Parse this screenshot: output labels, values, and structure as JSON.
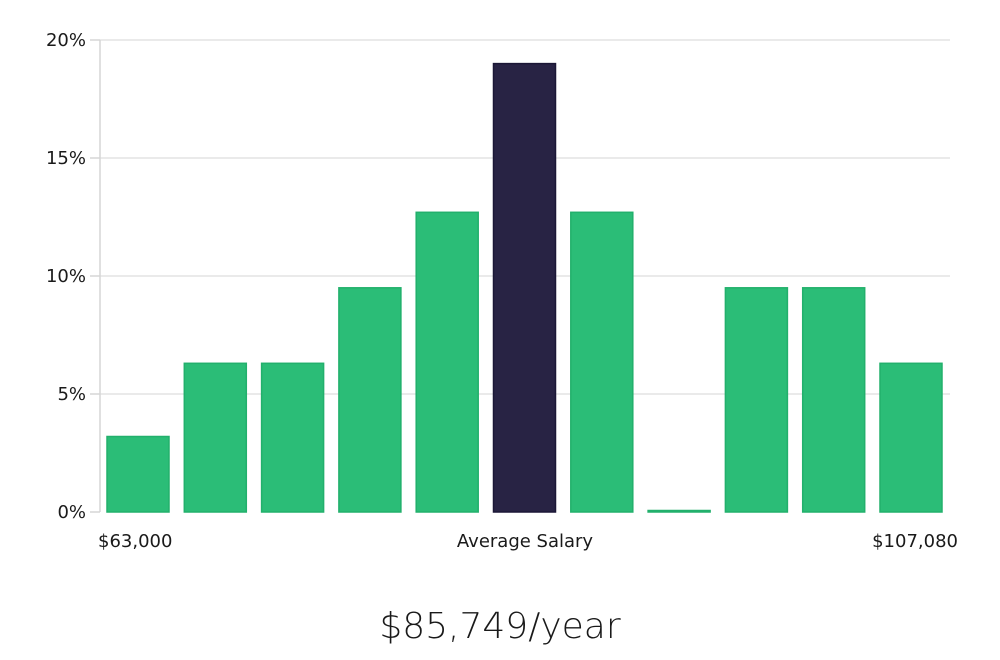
{
  "chart_data": {
    "type": "bar",
    "title": "",
    "ylabel": "",
    "ylim": [
      0,
      20
    ],
    "yticks": [
      "0%",
      "5%",
      "10%",
      "15%",
      "20%"
    ],
    "x_labels": {
      "left": "$63,000",
      "center": "Average Salary",
      "right": "$107,080"
    },
    "values": [
      3.2,
      6.3,
      6.3,
      9.5,
      12.7,
      19.0,
      12.7,
      0.0,
      9.5,
      9.5,
      6.3
    ],
    "highlight_index": 5,
    "colors": {
      "bar": "#2bbd77",
      "bar_stroke": "#22b06c",
      "highlight": "#282344",
      "highlight_stroke": "#1b1736"
    },
    "grid": true
  },
  "summary": {
    "salary": "$85,749/year"
  }
}
